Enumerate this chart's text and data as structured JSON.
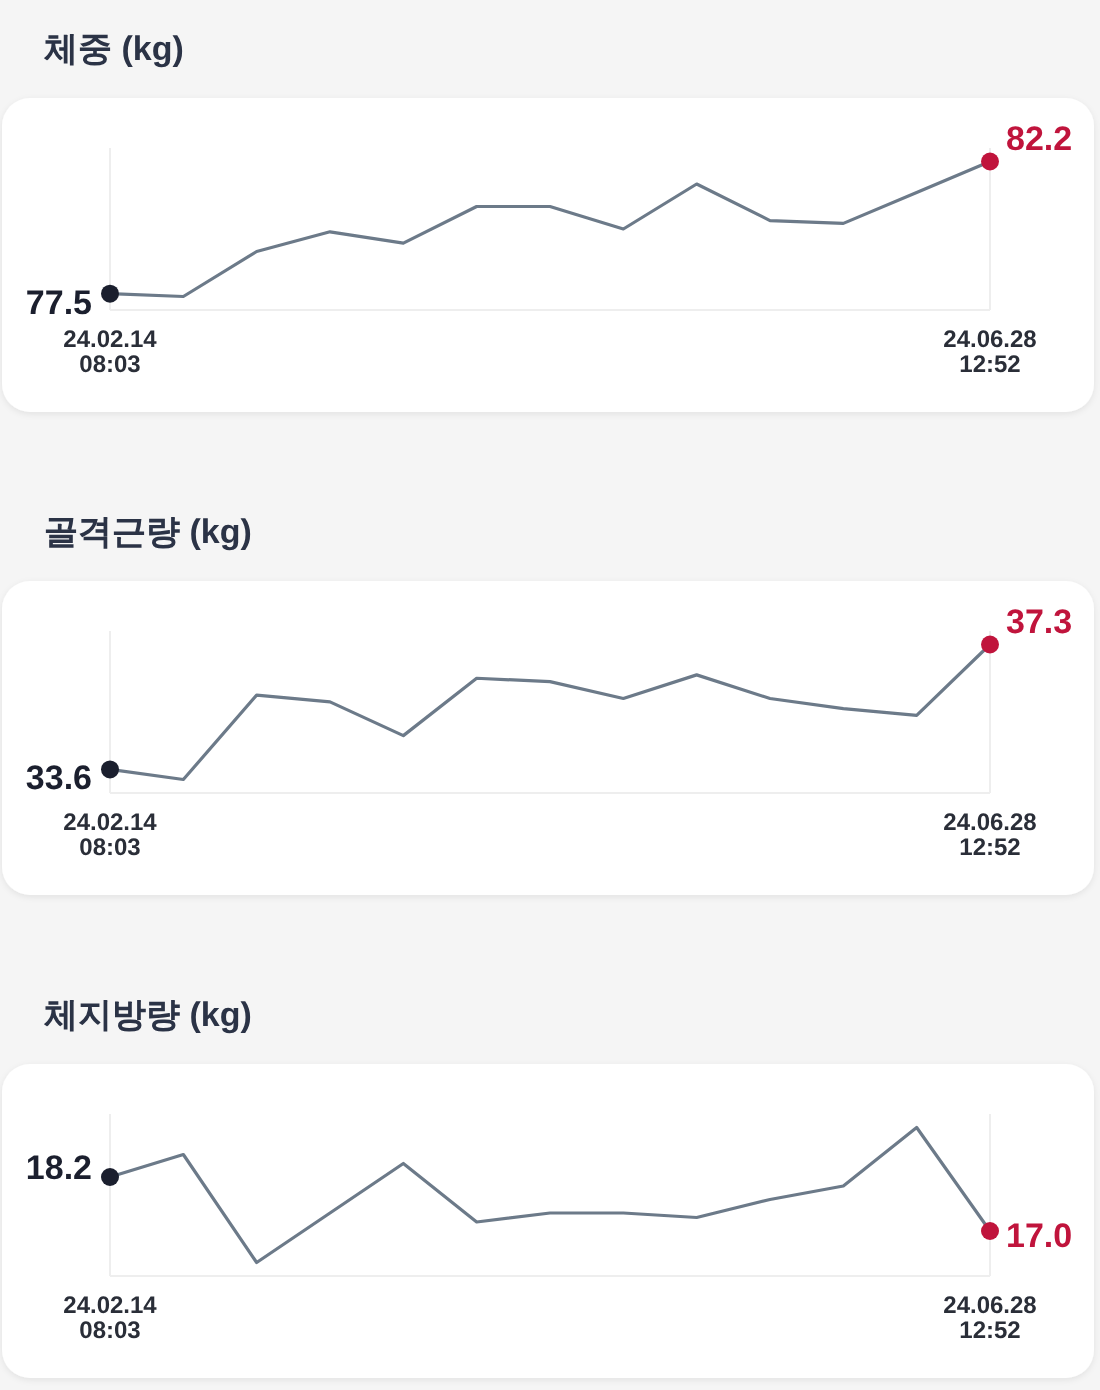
{
  "chart_data": [
    {
      "type": "line",
      "title": "체중 (kg)",
      "categories": [
        "24.02.14\n08:03",
        null,
        null,
        null,
        null,
        null,
        null,
        null,
        null,
        null,
        null,
        null,
        "24.06.28\n12:52"
      ],
      "series": [
        {
          "color": "#6c7a89",
          "values": [
            77.5,
            77.4,
            79.0,
            79.7,
            79.3,
            80.6,
            80.6,
            79.8,
            81.4,
            80.1,
            80.0,
            81.1,
            82.2
          ]
        },
        {
          "type": "scatter",
          "marker": "circle",
          "x": [
            "24.02.14\n08:03",
            "24.06.28\n12:52"
          ],
          "values": [
            77.5,
            82.2
          ],
          "colors": [
            "#1b1f2e",
            "#c0143c"
          ],
          "value_labels": [
            "77.5",
            "82.2"
          ]
        }
      ],
      "grid": "x",
      "tick_labels": "x"
    },
    {
      "type": "line",
      "title": "골격근량 (kg)",
      "categories": [
        "24.02.14\n08:03",
        null,
        null,
        null,
        null,
        null,
        null,
        null,
        null,
        null,
        null,
        null,
        "24.06.28\n12:52"
      ],
      "series": [
        {
          "color": "#6c7a89",
          "values": [
            33.6,
            33.3,
            35.8,
            35.6,
            34.6,
            36.3,
            36.2,
            35.7,
            36.4,
            35.7,
            35.4,
            35.2,
            37.3
          ]
        },
        {
          "type": "scatter",
          "marker": "circle",
          "x": [
            "24.02.14\n08:03",
            "24.06.28\n12:52"
          ],
          "values": [
            33.6,
            37.3
          ],
          "colors": [
            "#1b1f2e",
            "#c0143c"
          ],
          "value_labels": [
            "33.6",
            "37.3"
          ]
        }
      ],
      "grid": "x",
      "tick_labels": "x"
    },
    {
      "type": "line",
      "title": "체지방량 (kg)",
      "categories": [
        "24.02.14\n08:03",
        null,
        null,
        null,
        null,
        null,
        null,
        null,
        null,
        null,
        null,
        null,
        "24.06.28\n12:52"
      ],
      "series": [
        {
          "color": "#6c7a89",
          "values": [
            18.2,
            18.7,
            16.3,
            17.4,
            18.5,
            17.2,
            17.4,
            17.4,
            17.3,
            17.7,
            18.0,
            19.3,
            17.0
          ]
        },
        {
          "type": "scatter",
          "marker": "circle",
          "x": [
            "24.02.14\n08:03",
            "24.06.28\n12:52"
          ],
          "values": [
            18.2,
            17.0
          ],
          "colors": [
            "#1b1f2e",
            "#c0143c"
          ],
          "value_labels": [
            "18.2",
            "17.0"
          ]
        }
      ],
      "grid": "x",
      "tick_labels": "x"
    }
  ]
}
